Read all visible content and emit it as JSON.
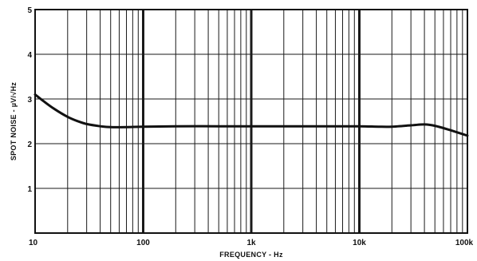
{
  "chart_data": {
    "type": "line",
    "title": "",
    "xlabel": "FREQUENCY - Hz",
    "ylabel": "SPOT NOISE - µV/√Hz",
    "x_scale": "log",
    "xlim": [
      10,
      100000
    ],
    "ylim": [
      0,
      5
    ],
    "grid": true,
    "x_ticks": [
      {
        "value": 10,
        "label": "10"
      },
      {
        "value": 100,
        "label": "100"
      },
      {
        "value": 1000,
        "label": "1k"
      },
      {
        "value": 10000,
        "label": "10k"
      },
      {
        "value": 100000,
        "label": "100k"
      }
    ],
    "y_ticks": [
      {
        "value": 1,
        "label": "1"
      },
      {
        "value": 2,
        "label": "2"
      },
      {
        "value": 3,
        "label": "3"
      },
      {
        "value": 4,
        "label": "4"
      },
      {
        "value": 5,
        "label": "5"
      }
    ],
    "series": [
      {
        "x": [
          10,
          12,
          15,
          20,
          25,
          30,
          40,
          50,
          70,
          100,
          200,
          500,
          1000,
          2000,
          5000,
          10000,
          15000,
          20000,
          30000,
          40000,
          50000,
          70000,
          100000
        ],
        "y": [
          3.1,
          2.95,
          2.78,
          2.6,
          2.5,
          2.44,
          2.39,
          2.37,
          2.37,
          2.38,
          2.39,
          2.39,
          2.39,
          2.39,
          2.39,
          2.39,
          2.38,
          2.38,
          2.41,
          2.43,
          2.4,
          2.3,
          2.18
        ]
      }
    ],
    "colors": {
      "line": "#111111",
      "grid": "#1a1a1a",
      "background": "#ffffff"
    }
  }
}
